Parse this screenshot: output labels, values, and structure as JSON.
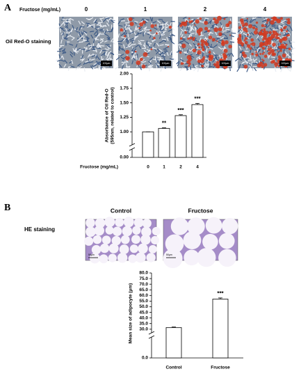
{
  "figure": {
    "panel_a": "A",
    "panel_b": "B",
    "fructose_header": "Fructose (mg/mL)",
    "a_columns": [
      "0",
      "1",
      "2",
      "4"
    ],
    "a_row_label": "Oil Red-O staining",
    "a_scale_bar": "100μm",
    "b_columns": [
      "Control",
      "Fructose"
    ],
    "b_row_label": "HE staining",
    "b_scale_bar": "50μm"
  },
  "chart_data": [
    {
      "type": "bar",
      "ylabel": [
        "Absorbance of Oil Red-O",
        "(595nm, related to control)"
      ],
      "xlabel": "Fructose (mg/mL)",
      "categories": [
        "0",
        "1",
        "2",
        "4"
      ],
      "values": [
        1.0,
        1.06,
        1.28,
        1.47
      ],
      "errors": [
        0,
        0.01,
        0.015,
        0.02
      ],
      "annotations": [
        null,
        "**",
        "***",
        "***"
      ],
      "color": "#ffffff",
      "ylim": [
        0,
        2
      ],
      "ybreak": [
        0,
        0.8
      ],
      "yticks": [
        {
          "value": 0,
          "label": "0.00"
        },
        {
          "value": 1,
          "label": "1.00"
        },
        1.25,
        {
          "value": 1.5,
          "label": "1.50"
        },
        1.75,
        {
          "value": 2,
          "label": "2.00"
        }
      ]
    },
    {
      "type": "bar",
      "ylabel": [
        "Mean size of adipocyte (μm)"
      ],
      "categories": [
        "Control",
        "Fructose"
      ],
      "values": [
        31.5,
        56.8
      ],
      "errors": [
        0.5,
        1.0
      ],
      "annotations": [
        null,
        "***"
      ],
      "color": "#ffffff",
      "ylim": [
        0,
        80
      ],
      "ybreak": [
        0,
        28
      ],
      "yticks": [
        {
          "value": 0,
          "label": "0.0"
        },
        {
          "value": 30,
          "label": "30.0"
        },
        {
          "value": 35,
          "label": "35.0"
        },
        {
          "value": 40,
          "label": "40.0"
        },
        {
          "value": 45,
          "label": "45.0"
        },
        {
          "value": 50,
          "label": "50.0"
        },
        {
          "value": 55,
          "label": "55.0"
        },
        {
          "value": 60,
          "label": "60.0"
        },
        {
          "value": 65,
          "label": "65.0"
        },
        {
          "value": 70,
          "label": "70.0"
        },
        {
          "value": 75,
          "label": "75.0"
        },
        {
          "value": 80,
          "label": "80.0"
        }
      ]
    }
  ]
}
